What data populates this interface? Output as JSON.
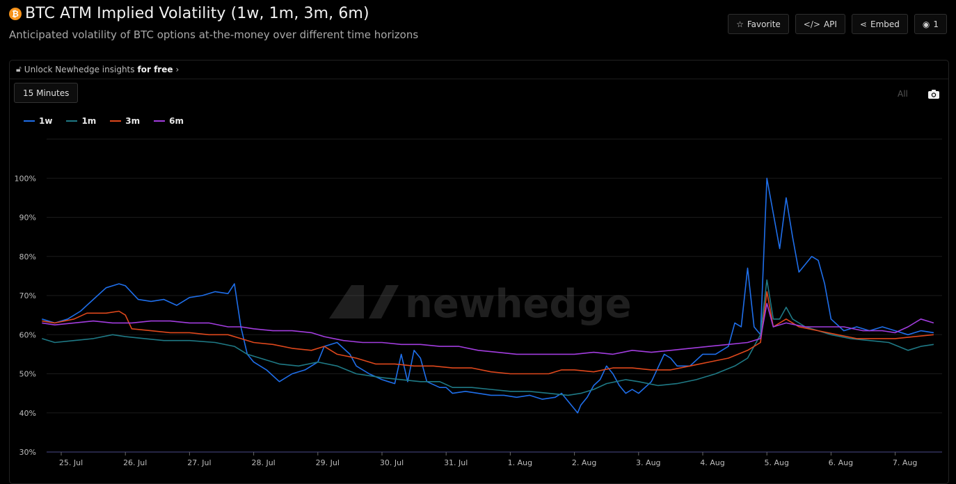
{
  "header": {
    "icon_symbol": "₿",
    "title": "BTC ATM Implied Volatility (1w, 1m, 3m, 6m)",
    "subtitle": "Anticipated volatility of BTC options at-the-money over different time horizons"
  },
  "actions": {
    "favorite": "Favorite",
    "api": "API",
    "embed": "Embed",
    "views": "1"
  },
  "panel": {
    "unlock_text": "Unlock Newhedge insights",
    "unlock_bold": "for free",
    "interval": "15 Minutes",
    "range": "All"
  },
  "watermark": "newhedge",
  "colors": {
    "1w": "#1f6feb",
    "1m": "#1f7a86",
    "3m": "#e0481c",
    "6m": "#a33de0",
    "grid": "#1b1b1b",
    "axis": "#4a4a8a"
  },
  "chart_data": {
    "type": "line",
    "x_unit": "days",
    "x_ticks": [
      "25. Jul",
      "26. Jul",
      "27. Jul",
      "28. Jul",
      "29. Jul",
      "30. Jul",
      "31. Jul",
      "1. Aug",
      "2. Aug",
      "3. Aug",
      "4. Aug",
      "5. Aug",
      "6. Aug",
      "7. Aug"
    ],
    "y_ticks": [
      "30%",
      "40%",
      "50%",
      "60%",
      "70%",
      "80%",
      "90%",
      "100%"
    ],
    "ylim": [
      30,
      110
    ],
    "series": [
      {
        "name": "1w",
        "color": "#1f6feb",
        "points": [
          [
            -0.3,
            64
          ],
          [
            -0.1,
            63
          ],
          [
            0.1,
            64
          ],
          [
            0.3,
            66
          ],
          [
            0.5,
            69
          ],
          [
            0.7,
            72
          ],
          [
            0.9,
            73
          ],
          [
            1.0,
            72.5
          ],
          [
            1.2,
            69
          ],
          [
            1.4,
            68.5
          ],
          [
            1.6,
            69
          ],
          [
            1.8,
            67.5
          ],
          [
            2.0,
            69.5
          ],
          [
            2.2,
            70
          ],
          [
            2.4,
            71
          ],
          [
            2.6,
            70.5
          ],
          [
            2.7,
            73
          ],
          [
            2.8,
            62
          ],
          [
            2.9,
            55
          ],
          [
            3.0,
            53
          ],
          [
            3.2,
            51
          ],
          [
            3.4,
            48
          ],
          [
            3.6,
            50
          ],
          [
            3.8,
            51
          ],
          [
            4.0,
            53
          ],
          [
            4.1,
            57
          ],
          [
            4.3,
            58
          ],
          [
            4.5,
            55
          ],
          [
            4.6,
            52
          ],
          [
            4.8,
            50
          ],
          [
            5.0,
            48.5
          ],
          [
            5.1,
            48
          ],
          [
            5.2,
            47.5
          ],
          [
            5.3,
            55
          ],
          [
            5.4,
            48
          ],
          [
            5.5,
            56
          ],
          [
            5.6,
            54
          ],
          [
            5.7,
            48
          ],
          [
            5.9,
            46.5
          ],
          [
            6.0,
            46.5
          ],
          [
            6.1,
            45
          ],
          [
            6.3,
            45.5
          ],
          [
            6.5,
            45
          ],
          [
            6.7,
            44.5
          ],
          [
            6.9,
            44.5
          ],
          [
            7.1,
            44
          ],
          [
            7.3,
            44.5
          ],
          [
            7.5,
            43.5
          ],
          [
            7.7,
            44
          ],
          [
            7.8,
            45
          ],
          [
            7.9,
            43
          ],
          [
            8.0,
            41
          ],
          [
            8.05,
            40
          ],
          [
            8.1,
            42
          ],
          [
            8.2,
            44
          ],
          [
            8.3,
            47
          ],
          [
            8.4,
            48.5
          ],
          [
            8.5,
            52
          ],
          [
            8.6,
            50
          ],
          [
            8.7,
            47
          ],
          [
            8.8,
            45
          ],
          [
            8.9,
            46
          ],
          [
            9.0,
            45
          ],
          [
            9.2,
            48
          ],
          [
            9.4,
            55
          ],
          [
            9.5,
            54
          ],
          [
            9.6,
            52
          ],
          [
            9.8,
            52
          ],
          [
            10.0,
            55
          ],
          [
            10.2,
            55
          ],
          [
            10.4,
            57
          ],
          [
            10.5,
            63
          ],
          [
            10.6,
            62
          ],
          [
            10.7,
            77
          ],
          [
            10.8,
            62
          ],
          [
            10.9,
            60
          ],
          [
            11.0,
            100
          ],
          [
            11.1,
            91
          ],
          [
            11.2,
            82
          ],
          [
            11.3,
            95
          ],
          [
            11.4,
            85
          ],
          [
            11.5,
            76
          ],
          [
            11.6,
            78
          ],
          [
            11.7,
            80
          ],
          [
            11.8,
            79
          ],
          [
            11.9,
            73
          ],
          [
            12.0,
            64
          ],
          [
            12.2,
            61
          ],
          [
            12.4,
            62
          ],
          [
            12.6,
            61
          ],
          [
            12.8,
            62
          ],
          [
            13.0,
            61
          ],
          [
            13.2,
            60
          ],
          [
            13.4,
            61
          ],
          [
            13.6,
            60.5
          ]
        ]
      },
      {
        "name": "1m",
        "color": "#1f7a86",
        "points": [
          [
            -0.3,
            59
          ],
          [
            -0.1,
            58
          ],
          [
            0.2,
            58.5
          ],
          [
            0.5,
            59
          ],
          [
            0.8,
            60
          ],
          [
            1.0,
            59.5
          ],
          [
            1.3,
            59
          ],
          [
            1.6,
            58.5
          ],
          [
            2.0,
            58.5
          ],
          [
            2.4,
            58
          ],
          [
            2.7,
            57
          ],
          [
            2.9,
            55
          ],
          [
            3.1,
            54
          ],
          [
            3.4,
            52.5
          ],
          [
            3.7,
            52
          ],
          [
            4.0,
            53
          ],
          [
            4.3,
            52
          ],
          [
            4.6,
            50
          ],
          [
            5.0,
            49
          ],
          [
            5.3,
            48.5
          ],
          [
            5.6,
            48
          ],
          [
            5.9,
            48
          ],
          [
            6.1,
            46.5
          ],
          [
            6.4,
            46.5
          ],
          [
            6.7,
            46
          ],
          [
            7.0,
            45.5
          ],
          [
            7.3,
            45.5
          ],
          [
            7.6,
            45
          ],
          [
            7.9,
            44.5
          ],
          [
            8.1,
            45
          ],
          [
            8.3,
            46
          ],
          [
            8.5,
            47.5
          ],
          [
            8.8,
            48.5
          ],
          [
            9.0,
            48
          ],
          [
            9.3,
            47
          ],
          [
            9.6,
            47.5
          ],
          [
            9.9,
            48.5
          ],
          [
            10.2,
            50
          ],
          [
            10.5,
            52
          ],
          [
            10.7,
            54
          ],
          [
            10.9,
            60
          ],
          [
            11.0,
            74
          ],
          [
            11.1,
            64
          ],
          [
            11.2,
            64
          ],
          [
            11.3,
            67
          ],
          [
            11.4,
            64
          ],
          [
            11.6,
            62
          ],
          [
            11.8,
            61
          ],
          [
            12.0,
            60
          ],
          [
            12.3,
            59
          ],
          [
            12.6,
            58.5
          ],
          [
            12.9,
            58
          ],
          [
            13.2,
            56
          ],
          [
            13.4,
            57
          ],
          [
            13.6,
            57.5
          ]
        ]
      },
      {
        "name": "3m",
        "color": "#e0481c",
        "points": [
          [
            -0.3,
            63.5
          ],
          [
            -0.1,
            63
          ],
          [
            0.2,
            64
          ],
          [
            0.4,
            65.5
          ],
          [
            0.7,
            65.5
          ],
          [
            0.9,
            66
          ],
          [
            1.0,
            65
          ],
          [
            1.1,
            61.5
          ],
          [
            1.4,
            61
          ],
          [
            1.7,
            60.5
          ],
          [
            2.0,
            60.5
          ],
          [
            2.3,
            60
          ],
          [
            2.6,
            60
          ],
          [
            2.8,
            59
          ],
          [
            3.0,
            58
          ],
          [
            3.3,
            57.5
          ],
          [
            3.6,
            56.5
          ],
          [
            3.9,
            56
          ],
          [
            4.1,
            57
          ],
          [
            4.3,
            55
          ],
          [
            4.6,
            54
          ],
          [
            4.9,
            52.5
          ],
          [
            5.2,
            52.5
          ],
          [
            5.5,
            52
          ],
          [
            5.8,
            52
          ],
          [
            6.1,
            51.5
          ],
          [
            6.4,
            51.5
          ],
          [
            6.7,
            50.5
          ],
          [
            7.0,
            50
          ],
          [
            7.3,
            50
          ],
          [
            7.6,
            50
          ],
          [
            7.8,
            51
          ],
          [
            8.0,
            51
          ],
          [
            8.3,
            50.5
          ],
          [
            8.6,
            51.5
          ],
          [
            8.9,
            51.5
          ],
          [
            9.2,
            51
          ],
          [
            9.5,
            51
          ],
          [
            9.8,
            52
          ],
          [
            10.1,
            53
          ],
          [
            10.4,
            54
          ],
          [
            10.7,
            56
          ],
          [
            10.9,
            58
          ],
          [
            11.0,
            71
          ],
          [
            11.1,
            62
          ],
          [
            11.3,
            64
          ],
          [
            11.5,
            62
          ],
          [
            11.8,
            61
          ],
          [
            12.1,
            60
          ],
          [
            12.4,
            59
          ],
          [
            12.7,
            59
          ],
          [
            13.0,
            59
          ],
          [
            13.3,
            59.5
          ],
          [
            13.6,
            60
          ]
        ]
      },
      {
        "name": "6m",
        "color": "#a33de0",
        "points": [
          [
            -0.3,
            63
          ],
          [
            -0.1,
            62.5
          ],
          [
            0.2,
            63
          ],
          [
            0.5,
            63.5
          ],
          [
            0.8,
            63
          ],
          [
            1.1,
            63
          ],
          [
            1.4,
            63.5
          ],
          [
            1.7,
            63.5
          ],
          [
            2.0,
            63
          ],
          [
            2.3,
            63
          ],
          [
            2.6,
            62
          ],
          [
            2.8,
            62
          ],
          [
            3.0,
            61.5
          ],
          [
            3.3,
            61
          ],
          [
            3.6,
            61
          ],
          [
            3.9,
            60.5
          ],
          [
            4.1,
            59.5
          ],
          [
            4.4,
            58.5
          ],
          [
            4.7,
            58
          ],
          [
            5.0,
            58
          ],
          [
            5.3,
            57.5
          ],
          [
            5.6,
            57.5
          ],
          [
            5.9,
            57
          ],
          [
            6.2,
            57
          ],
          [
            6.5,
            56
          ],
          [
            6.8,
            55.5
          ],
          [
            7.1,
            55
          ],
          [
            7.4,
            55
          ],
          [
            7.7,
            55
          ],
          [
            8.0,
            55
          ],
          [
            8.3,
            55.5
          ],
          [
            8.6,
            55
          ],
          [
            8.9,
            56
          ],
          [
            9.2,
            55.5
          ],
          [
            9.5,
            56
          ],
          [
            9.8,
            56.5
          ],
          [
            10.1,
            57
          ],
          [
            10.4,
            57.5
          ],
          [
            10.7,
            58
          ],
          [
            10.9,
            59
          ],
          [
            11.0,
            68
          ],
          [
            11.1,
            62
          ],
          [
            11.3,
            63
          ],
          [
            11.6,
            62
          ],
          [
            11.9,
            62
          ],
          [
            12.2,
            62
          ],
          [
            12.5,
            61
          ],
          [
            12.8,
            61
          ],
          [
            13.0,
            60.5
          ],
          [
            13.2,
            62
          ],
          [
            13.4,
            64
          ],
          [
            13.6,
            63
          ]
        ]
      }
    ]
  }
}
